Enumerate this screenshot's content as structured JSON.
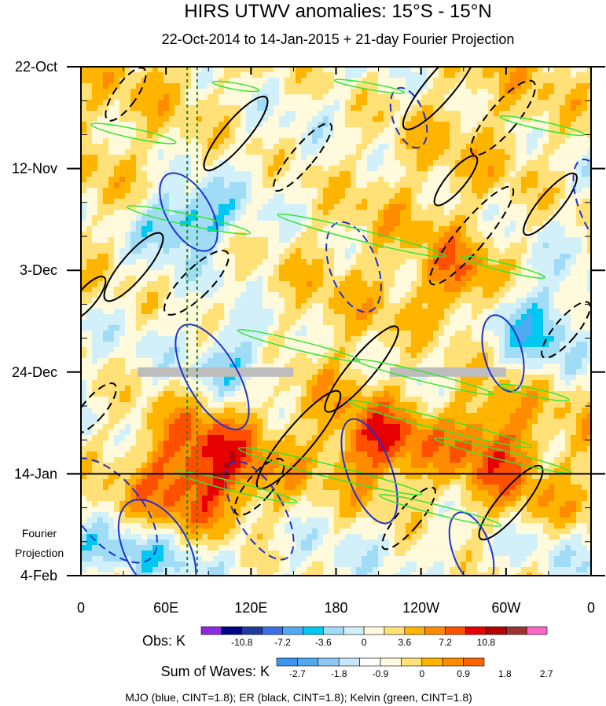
{
  "chart_data": {
    "type": "heatmap",
    "title": "HIRS UTWV anomalies: 15°S - 15°N",
    "subtitle": "22-Oct-2014 to 14-Jan-2015 + 21-day Fourier Projection",
    "y_tick_labels": [
      "22-Oct",
      "12-Nov",
      "3-Dec",
      "24-Dec",
      "14-Jan",
      "4-Feb"
    ],
    "y_days_from_start": [
      0,
      21,
      42,
      63,
      84,
      105
    ],
    "projection_label_line1": "Fourier",
    "projection_label_line2": "Projection",
    "projection_start_label": "14-Jan",
    "x_tick_labels": [
      "0",
      "60E",
      "120E",
      "180",
      "120W",
      "60W",
      "0"
    ],
    "x_longitudes": [
      0,
      60,
      120,
      180,
      240,
      300,
      360
    ],
    "obs_colorbar": {
      "label": "Obs: K",
      "tick_labels": [
        "-10.8",
        "-7.2",
        "-3.6",
        "0",
        "3.6",
        "7.2",
        "10.8"
      ],
      "colors": [
        "#8c2be2",
        "#00008b",
        "#1e3ca0",
        "#3c6ee6",
        "#50aaf0",
        "#00c8f0",
        "#a0dcf5",
        "#d2f0fa",
        "#fffadc",
        "#ffe178",
        "#ffb400",
        "#ff8c00",
        "#ff5000",
        "#e60000",
        "#b40000",
        "#a03232",
        "#ff64c8"
      ]
    },
    "waves_colorbar": {
      "label": "Sum of Waves: K",
      "tick_labels": [
        "-2.7",
        "-1.8",
        "-0.9",
        "0",
        "0.9",
        "1.8",
        "2.7"
      ],
      "colors": [
        "#3c96f0",
        "#50aaf0",
        "#8cc8f5",
        "#c8e6fa",
        "#ffffff",
        "#fffadc",
        "#ffe178",
        "#ffb400",
        "#ff8c00",
        "#ff6400"
      ]
    },
    "missing_data_day": 63,
    "missing_data_segments": [
      [
        40,
        150
      ],
      [
        218,
        300
      ]
    ],
    "reference_longitudes": [
      75,
      82
    ],
    "contour_interval": 1.8,
    "legend_text": "MJO (blue, CINT=1.8); ER (black, CINT=1.8); Kelvin (green, CINT=1.8)"
  }
}
